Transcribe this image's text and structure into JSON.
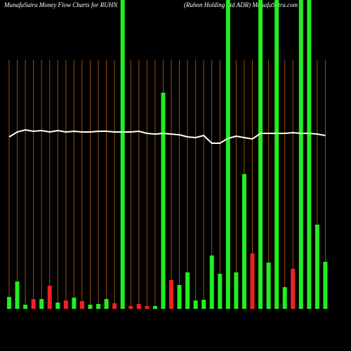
{
  "chart_data": {
    "type": "bar",
    "title": "MunafaSutra  Money Flow  Charts for RUHN",
    "subtitle": "(Ruhnn  Holding Ltd ADR) MunafaSutra.com",
    "categories": [
      null,
      null,
      null,
      null,
      null,
      null,
      null,
      null,
      null,
      null,
      null,
      null,
      null,
      null,
      null,
      null,
      null,
      null,
      null,
      null,
      null,
      null,
      null,
      null,
      null,
      null,
      null,
      null,
      null,
      null,
      null,
      null,
      null,
      null,
      null,
      null,
      null,
      null,
      null,
      null
    ],
    "values": [
      17,
      39,
      6,
      14,
      14,
      33,
      9,
      12,
      16,
      11,
      6,
      7,
      14,
      8,
      440,
      4,
      7,
      4,
      4,
      308,
      41,
      34,
      52,
      12,
      13,
      76,
      50,
      440,
      52,
      192,
      79,
      440,
      66,
      440,
      31,
      57,
      440,
      440,
      120,
      67
    ],
    "colors": [
      "#22ee22",
      "#22ee22",
      "#22ee22",
      "#ee2222",
      "#22ee22",
      "#ee2222",
      "#22ee22",
      "#ee2222",
      "#22ee22",
      "#ee2222",
      "#22ee22",
      "#22ee22",
      "#22ee22",
      "#ee2222",
      "#22ee22",
      "#ee2222",
      "#ee2222",
      "#ee2222",
      "#22ee22",
      "#22ee22",
      "#ee2222",
      "#22ee22",
      "#22ee22",
      "#22ee22",
      "#22ee22",
      "#22ee22",
      "#22ee22",
      "#22ee22",
      "#22ee22",
      "#22ee22",
      "#ee2222",
      "#22ee22",
      "#22ee22",
      "#22ee22",
      "#22ee22",
      "#ee2222",
      "#22ee22",
      "#22ee22",
      "#22ee22",
      "#22ee22"
    ],
    "line": {
      "color": "#ffffff",
      "values": [
        245,
        252,
        255,
        253,
        254,
        252,
        254,
        252,
        253,
        252,
        252,
        253,
        253,
        252,
        252,
        252,
        253,
        250,
        249,
        250,
        249,
        248,
        245,
        244,
        247,
        236,
        236,
        243,
        246,
        244,
        242,
        250,
        250,
        250,
        250,
        251,
        250,
        250,
        249,
        247
      ]
    },
    "ylim": [
      0,
      440
    ],
    "grid": true,
    "grid_color": "#9a4f0a"
  }
}
